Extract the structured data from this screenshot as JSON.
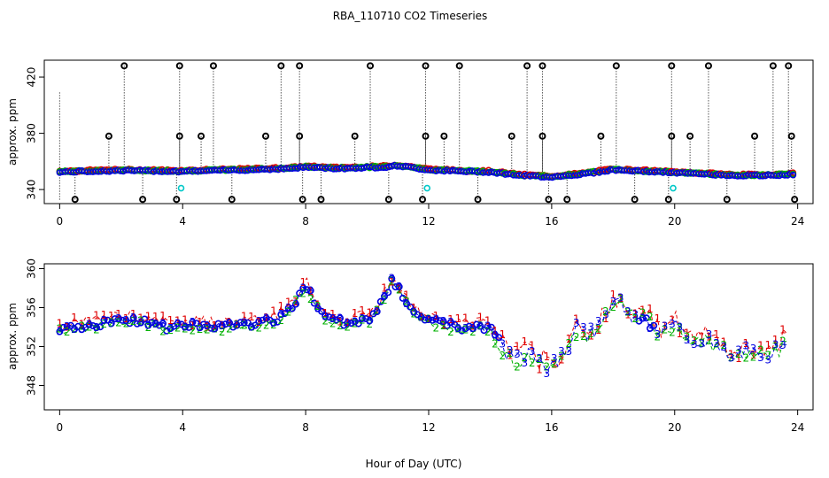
{
  "chart_data": [
    {
      "type": "scatter",
      "title": "RBA_110710  CO2 Timeseries",
      "xlabel": "",
      "ylabel": "approx. ppm",
      "xlim": [
        -0.5,
        24.5
      ],
      "ylim": [
        330,
        432
      ],
      "xticks": [
        0,
        4,
        8,
        12,
        16,
        20,
        24
      ],
      "xtick_labels": [
        "0",
        "4",
        "8",
        "12",
        "16",
        "20",
        "24"
      ],
      "yticks": [
        340,
        380,
        420
      ],
      "ytick_labels": [
        "340",
        "380",
        "420"
      ],
      "series_colors": {
        "1": "#e00000",
        "2": "#00b000",
        "3": "#0000e0",
        "4": "#00c8c8",
        "outlier": "#000000"
      },
      "baseline": [
        [
          0,
          352.5
        ],
        [
          2,
          353.5
        ],
        [
          4,
          353
        ],
        [
          6,
          354
        ],
        [
          7.5,
          355
        ],
        [
          8,
          356
        ],
        [
          9,
          355
        ],
        [
          10.5,
          356
        ],
        [
          11,
          357
        ],
        [
          12,
          354
        ],
        [
          13,
          353
        ],
        [
          14,
          352.5
        ],
        [
          15,
          350
        ],
        [
          16,
          349
        ],
        [
          17,
          351
        ],
        [
          18,
          354
        ],
        [
          19,
          353
        ],
        [
          20,
          352
        ],
        [
          21,
          351
        ],
        [
          22,
          350
        ],
        [
          23,
          350
        ],
        [
          24,
          351
        ]
      ],
      "outliers": [
        {
          "x": 0.5,
          "y": 333
        },
        {
          "x": 1.6,
          "y": 378
        },
        {
          "x": 2.1,
          "y": 428
        },
        {
          "x": 2.7,
          "y": 333
        },
        {
          "x": 3.8,
          "y": 333
        },
        {
          "x": 3.9,
          "y": 378
        },
        {
          "x": 3.9,
          "y": 428
        },
        {
          "x": 4.6,
          "y": 378
        },
        {
          "x": 5.0,
          "y": 428
        },
        {
          "x": 5.6,
          "y": 333
        },
        {
          "x": 6.7,
          "y": 378
        },
        {
          "x": 7.2,
          "y": 428
        },
        {
          "x": 7.8,
          "y": 428
        },
        {
          "x": 7.8,
          "y": 378
        },
        {
          "x": 7.9,
          "y": 333
        },
        {
          "x": 8.5,
          "y": 333
        },
        {
          "x": 9.6,
          "y": 378
        },
        {
          "x": 10.1,
          "y": 428
        },
        {
          "x": 10.7,
          "y": 333
        },
        {
          "x": 11.8,
          "y": 333
        },
        {
          "x": 11.9,
          "y": 378
        },
        {
          "x": 11.9,
          "y": 428
        },
        {
          "x": 12.5,
          "y": 378
        },
        {
          "x": 13.0,
          "y": 428
        },
        {
          "x": 13.6,
          "y": 333
        },
        {
          "x": 14.7,
          "y": 378
        },
        {
          "x": 15.2,
          "y": 428
        },
        {
          "x": 15.7,
          "y": 428
        },
        {
          "x": 15.7,
          "y": 378
        },
        {
          "x": 15.9,
          "y": 333
        },
        {
          "x": 16.5,
          "y": 333
        },
        {
          "x": 17.6,
          "y": 378
        },
        {
          "x": 18.1,
          "y": 428
        },
        {
          "x": 18.7,
          "y": 333
        },
        {
          "x": 19.8,
          "y": 333
        },
        {
          "x": 19.9,
          "y": 378
        },
        {
          "x": 19.9,
          "y": 428
        },
        {
          "x": 20.5,
          "y": 378
        },
        {
          "x": 21.1,
          "y": 428
        },
        {
          "x": 21.7,
          "y": 333
        },
        {
          "x": 22.6,
          "y": 378
        },
        {
          "x": 23.2,
          "y": 428
        },
        {
          "x": 23.7,
          "y": 428
        },
        {
          "x": 23.8,
          "y": 378
        },
        {
          "x": 23.9,
          "y": 333
        }
      ],
      "cyan_points": [
        {
          "x": 3.95,
          "y": 341
        },
        {
          "x": 11.95,
          "y": 341
        },
        {
          "x": 19.95,
          "y": 341
        }
      ]
    },
    {
      "type": "scatter",
      "title": "",
      "xlabel": "Hour of Day (UTC)",
      "ylabel": "approx. ppm",
      "xlim": [
        -0.5,
        24.5
      ],
      "ylim": [
        345.5,
        360.5
      ],
      "xticks": [
        0,
        4,
        8,
        12,
        16,
        20,
        24
      ],
      "xtick_labels": [
        "0",
        "4",
        "8",
        "12",
        "16",
        "20",
        "24"
      ],
      "yticks": [
        348,
        352,
        356,
        360
      ],
      "ytick_labels": [
        "348",
        "352",
        "356",
        "360"
      ],
      "series_colors": {
        "1": "#e00000",
        "2": "#00b000",
        "3": "#0000e0"
      },
      "series_symbols": {
        "1": "1",
        "2": "2",
        "3": "3"
      },
      "baseline": [
        [
          0,
          353.5
        ],
        [
          1,
          354
        ],
        [
          2,
          354.5
        ],
        [
          3,
          354.3
        ],
        [
          3.6,
          353.6
        ],
        [
          4,
          354
        ],
        [
          5,
          353.8
        ],
        [
          6,
          354
        ],
        [
          7,
          354.5
        ],
        [
          7.5,
          355.5
        ],
        [
          8,
          358
        ],
        [
          8.4,
          356
        ],
        [
          8.7,
          354.5
        ],
        [
          9.5,
          354.2
        ],
        [
          10.2,
          354.8
        ],
        [
          10.8,
          358.5
        ],
        [
          11.2,
          357
        ],
        [
          11.6,
          355
        ],
        [
          12.5,
          354
        ],
        [
          13,
          353.8
        ],
        [
          14,
          353.8
        ],
        [
          14.4,
          351.5
        ],
        [
          14.8,
          350.5
        ],
        [
          15.2,
          351
        ],
        [
          15.6,
          350
        ],
        [
          16,
          349.5
        ],
        [
          16.4,
          351
        ],
        [
          16.8,
          353.5
        ],
        [
          17.3,
          353
        ],
        [
          17.8,
          355
        ],
        [
          18.2,
          356.8
        ],
        [
          18.6,
          355
        ],
        [
          19,
          355
        ],
        [
          19.6,
          353
        ],
        [
          20,
          354
        ],
        [
          20.4,
          352.5
        ],
        [
          21,
          352.5
        ],
        [
          21.6,
          351.5
        ],
        [
          22,
          350.5
        ],
        [
          22.5,
          351.5
        ],
        [
          23,
          350.8
        ],
        [
          23.7,
          352.5
        ]
      ]
    }
  ]
}
